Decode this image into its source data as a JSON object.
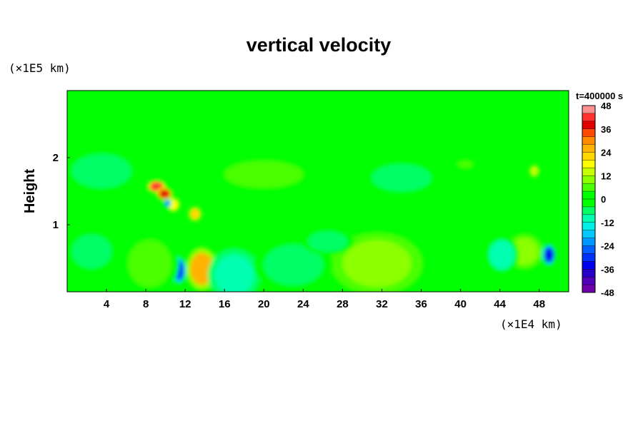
{
  "chart_data": {
    "type": "heatmap",
    "title": "vertical velocity",
    "ylabel": "Height",
    "xlabel": "",
    "x_unit_label": "(×1E4 km)",
    "y_unit_label": "(×1E5 km)",
    "time_label": "t=400000 s",
    "xlim": [
      0,
      51
    ],
    "ylim": [
      0,
      3
    ],
    "x_ticks": [
      "4",
      "8",
      "12",
      "16",
      "20",
      "24",
      "28",
      "32",
      "36",
      "40",
      "44",
      "48"
    ],
    "y_ticks": [
      "1",
      "2"
    ],
    "colorbar": {
      "min": -48,
      "max": 48,
      "step": 4,
      "tick_labels": [
        "48",
        "36",
        "24",
        "12",
        "0",
        "-12",
        "-24",
        "-36",
        "-48"
      ],
      "colors": [
        "#ff9090",
        "#ff3030",
        "#e00000",
        "#ff4a00",
        "#ff8a00",
        "#ffb300",
        "#ffd800",
        "#ffff00",
        "#c8ff00",
        "#8cff00",
        "#4aff00",
        "#00ff00",
        "#00ff00",
        "#00ff66",
        "#00ffb0",
        "#00f0e8",
        "#00c8ff",
        "#0096ff",
        "#0060ff",
        "#0030ff",
        "#0000ee",
        "#2800c8",
        "#5000b8",
        "#7000a8"
      ]
    },
    "background_value": 0,
    "features": [
      {
        "x": 9.1,
        "y": 1.57,
        "rx": 0.7,
        "ry": 0.07,
        "value": 42
      },
      {
        "x": 9.9,
        "y": 1.46,
        "rx": 0.6,
        "ry": 0.07,
        "value": 40
      },
      {
        "x": 10.8,
        "y": 1.3,
        "rx": 0.5,
        "ry": 0.08,
        "value": 18
      },
      {
        "x": 13.0,
        "y": 1.16,
        "rx": 0.5,
        "ry": 0.08,
        "value": 22
      },
      {
        "x": 10.2,
        "y": 1.32,
        "rx": 0.3,
        "ry": 0.05,
        "value": -22
      },
      {
        "x": 13.7,
        "y": 0.34,
        "rx": 1.2,
        "ry": 0.24,
        "value": 26
      },
      {
        "x": 11.4,
        "y": 0.32,
        "rx": 0.5,
        "ry": 0.15,
        "value": -28
      },
      {
        "x": 17.0,
        "y": 0.25,
        "rx": 2.0,
        "ry": 0.3,
        "value": -10
      },
      {
        "x": 8.4,
        "y": 0.42,
        "rx": 2.2,
        "ry": 0.35,
        "value": 7
      },
      {
        "x": 31.5,
        "y": 0.42,
        "rx": 3.5,
        "ry": 0.35,
        "value": 9
      },
      {
        "x": 23.0,
        "y": 0.4,
        "rx": 3.0,
        "ry": 0.3,
        "value": -7
      },
      {
        "x": 26.5,
        "y": 0.75,
        "rx": 2.0,
        "ry": 0.15,
        "value": -5
      },
      {
        "x": 49.0,
        "y": 0.55,
        "rx": 0.5,
        "ry": 0.12,
        "value": -32
      },
      {
        "x": 46.5,
        "y": 0.6,
        "rx": 1.4,
        "ry": 0.2,
        "value": 10
      },
      {
        "x": 44.2,
        "y": 0.55,
        "rx": 1.3,
        "ry": 0.22,
        "value": -8
      },
      {
        "x": 47.5,
        "y": 1.8,
        "rx": 0.4,
        "ry": 0.07,
        "value": 14
      },
      {
        "x": 40.5,
        "y": 1.9,
        "rx": 0.8,
        "ry": 0.06,
        "value": 6
      },
      {
        "x": 20.0,
        "y": 1.75,
        "rx": 4.0,
        "ry": 0.2,
        "value": 5
      },
      {
        "x": 34.0,
        "y": 1.7,
        "rx": 3.0,
        "ry": 0.2,
        "value": -4
      },
      {
        "x": 3.5,
        "y": 1.8,
        "rx": 3.0,
        "ry": 0.25,
        "value": -5
      },
      {
        "x": 2.5,
        "y": 0.6,
        "rx": 2.0,
        "ry": 0.25,
        "value": -6
      },
      {
        "x": 43.0,
        "y": 1.3,
        "rx": 3.0,
        "ry": 0.3,
        "value": 4
      }
    ]
  }
}
